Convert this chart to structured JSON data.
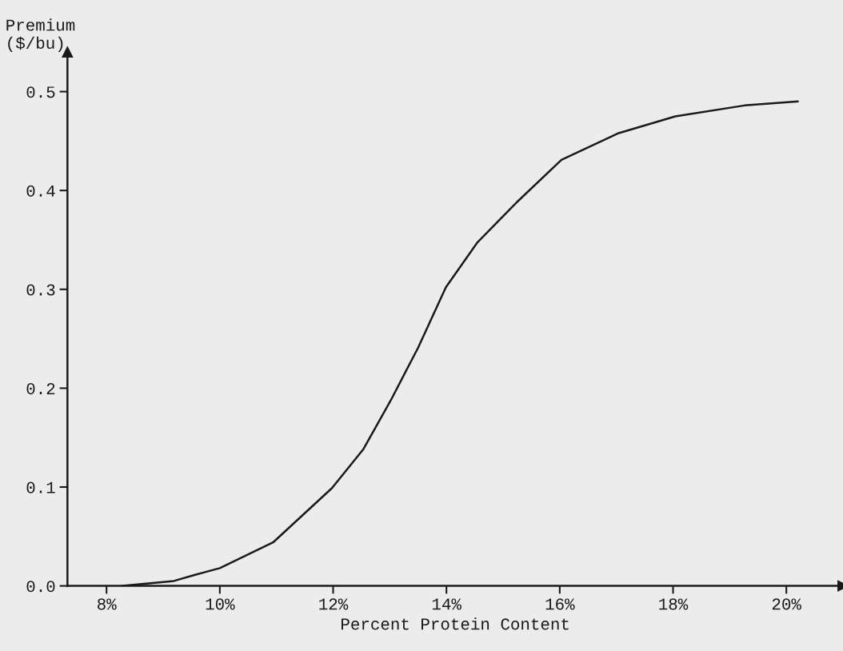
{
  "chart_data": {
    "type": "line",
    "ylabel": "Premium\n($/bu)",
    "xlabel": "Percent Protein Content",
    "x": [
      8.28,
      9.19,
      9.55,
      10.0,
      10.94,
      11.98,
      12.53,
      13.02,
      13.5,
      13.99,
      14.54,
      15.24,
      16.03,
      17.04,
      18.04,
      19.26,
      20.2
    ],
    "series": [
      {
        "color": "#1a1a1a",
        "values": [
          0.0,
          0.005,
          0.011,
          0.018,
          0.044,
          0.099,
          0.138,
          0.188,
          0.241,
          0.302,
          0.347,
          0.388,
          0.431,
          0.458,
          0.475,
          0.486,
          0.49
        ]
      }
    ],
    "xlim": [
      7.31,
      21.0
    ],
    "ylim": [
      0,
      0.54
    ],
    "xticks": [
      {
        "value": 8,
        "label": "8%"
      },
      {
        "value": 10,
        "label": "10%"
      },
      {
        "value": 12,
        "label": "12%"
      },
      {
        "value": 14,
        "label": "14%"
      },
      {
        "value": 16,
        "label": "16%"
      },
      {
        "value": 18,
        "label": "18%"
      },
      {
        "value": 20,
        "label": "20%"
      }
    ],
    "yticks": [
      {
        "value": 0,
        "label": "0.0"
      },
      {
        "value": 0.1,
        "label": "0.1"
      },
      {
        "value": 0.2,
        "label": "0.2"
      },
      {
        "value": 0.3,
        "label": "0.3"
      },
      {
        "value": 0.4,
        "label": "0.4"
      },
      {
        "value": 0.5,
        "label": "0.5"
      }
    ],
    "grid": false,
    "legend": false,
    "marker": "none",
    "line_style": "solid"
  }
}
